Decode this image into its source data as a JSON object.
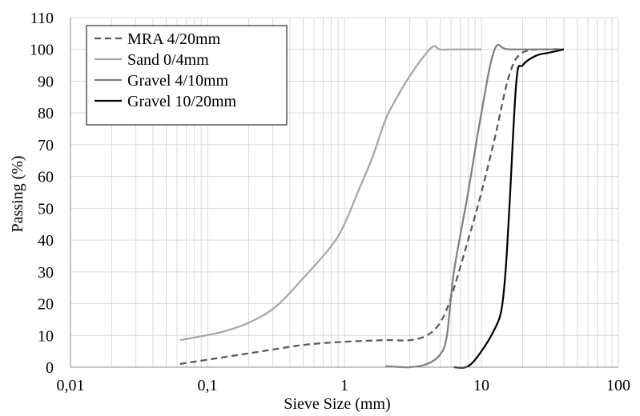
{
  "chart_data": {
    "type": "line",
    "xlabel": "Sieve Size (mm)",
    "ylabel": "Passing (%)",
    "x_scale": "log",
    "xlim": [
      0.01,
      100
    ],
    "ylim": [
      0,
      110
    ],
    "x_ticks": [
      {
        "value": 0.01,
        "label": "0,01"
      },
      {
        "value": 0.1,
        "label": "0,1"
      },
      {
        "value": 1,
        "label": "1"
      },
      {
        "value": 10,
        "label": "10"
      },
      {
        "value": 100,
        "label": "100"
      }
    ],
    "y_ticks": [
      {
        "value": 0,
        "label": "0"
      },
      {
        "value": 10,
        "label": "10"
      },
      {
        "value": 20,
        "label": "20"
      },
      {
        "value": 30,
        "label": "30"
      },
      {
        "value": 40,
        "label": "40"
      },
      {
        "value": 50,
        "label": "50"
      },
      {
        "value": 60,
        "label": "60"
      },
      {
        "value": 70,
        "label": "70"
      },
      {
        "value": 80,
        "label": "80"
      },
      {
        "value": 90,
        "label": "90"
      },
      {
        "value": 100,
        "label": "100"
      },
      {
        "value": 110,
        "label": "110"
      }
    ],
    "grid": true,
    "legend_position": "top-left",
    "series": [
      {
        "name": "MRA 4/20mm",
        "color": "#595959",
        "dash": true,
        "points": [
          [
            0.063,
            1
          ],
          [
            0.125,
            3
          ],
          [
            0.25,
            5
          ],
          [
            0.5,
            7
          ],
          [
            1,
            8
          ],
          [
            2,
            8.5
          ],
          [
            3,
            8.5
          ],
          [
            4,
            10
          ],
          [
            5,
            14
          ],
          [
            6,
            22
          ],
          [
            8,
            40
          ],
          [
            10,
            55
          ],
          [
            12.5,
            72
          ],
          [
            16,
            92
          ],
          [
            20,
            99
          ],
          [
            31.5,
            100
          ],
          [
            40,
            100
          ]
        ]
      },
      {
        "name": "Sand 0/4mm",
        "color": "#a6a6a6",
        "dash": false,
        "points": [
          [
            0.063,
            8.5
          ],
          [
            0.125,
            11
          ],
          [
            0.2,
            14
          ],
          [
            0.315,
            19
          ],
          [
            0.5,
            28
          ],
          [
            0.8,
            38
          ],
          [
            1,
            45
          ],
          [
            1.25,
            55
          ],
          [
            1.6,
            66
          ],
          [
            2,
            78
          ],
          [
            2.5,
            86
          ],
          [
            3.15,
            93
          ],
          [
            4,
            99
          ],
          [
            4.5,
            101
          ],
          [
            5,
            100
          ],
          [
            6.3,
            100
          ],
          [
            10,
            100
          ]
        ]
      },
      {
        "name": "Gravel 4/10mm",
        "color": "#7f7f7f",
        "dash": false,
        "points": [
          [
            2,
            0.3
          ],
          [
            3,
            0
          ],
          [
            4,
            1
          ],
          [
            5,
            4
          ],
          [
            5.6,
            10
          ],
          [
            6.3,
            30
          ],
          [
            8,
            55
          ],
          [
            10,
            80
          ],
          [
            12.5,
            100
          ],
          [
            16,
            100
          ],
          [
            40,
            100
          ]
        ]
      },
      {
        "name": "Gravel 10/20mm",
        "color": "#000000",
        "dash": false,
        "points": [
          [
            6.3,
            0
          ],
          [
            8,
            0.3
          ],
          [
            10,
            5
          ],
          [
            12.5,
            12
          ],
          [
            14,
            18
          ],
          [
            15,
            30
          ],
          [
            16,
            50
          ],
          [
            18,
            90
          ],
          [
            20,
            95
          ],
          [
            25,
            98
          ],
          [
            31.5,
            99
          ],
          [
            40,
            100
          ]
        ]
      }
    ]
  }
}
